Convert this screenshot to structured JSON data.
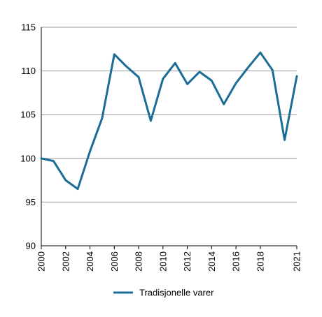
{
  "chart_data": {
    "type": "line",
    "title": "",
    "xlabel": "",
    "ylabel": "",
    "xlim": [
      2000,
      2021
    ],
    "ylim": [
      90,
      115
    ],
    "y_ticks": [
      90,
      95,
      100,
      105,
      110,
      115
    ],
    "x_ticks": [
      2000,
      2002,
      2004,
      2006,
      2008,
      2010,
      2012,
      2014,
      2016,
      2018,
      2021
    ],
    "grid": "horizontal",
    "legend_position": "bottom",
    "series": [
      {
        "name": "Tradisjonelle varer",
        "color": "#1b6c96",
        "x": [
          2000,
          2001,
          2002,
          2003,
          2004,
          2005,
          2006,
          2007,
          2008,
          2009,
          2010,
          2011,
          2012,
          2013,
          2014,
          2015,
          2016,
          2017,
          2018,
          2019,
          2020,
          2021
        ],
        "values": [
          100.0,
          99.7,
          97.5,
          96.5,
          100.8,
          104.6,
          111.9,
          110.5,
          109.3,
          104.3,
          109.1,
          110.9,
          108.5,
          109.9,
          108.9,
          106.2,
          108.6,
          110.4,
          112.1,
          110.1,
          102.1,
          109.4
        ]
      }
    ]
  }
}
